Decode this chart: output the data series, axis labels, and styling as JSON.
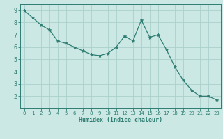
{
  "x": [
    0,
    1,
    2,
    3,
    4,
    5,
    6,
    7,
    8,
    9,
    10,
    11,
    12,
    13,
    14,
    15,
    16,
    17,
    18,
    19,
    20,
    21,
    22,
    23
  ],
  "y": [
    9.0,
    8.4,
    7.8,
    7.4,
    6.5,
    6.3,
    6.0,
    5.7,
    5.4,
    5.3,
    5.5,
    6.0,
    6.9,
    6.5,
    8.2,
    6.8,
    7.0,
    5.8,
    4.4,
    3.3,
    2.5,
    2.0,
    2.0,
    1.7
  ],
  "line_color": "#2e7d72",
  "marker": "*",
  "marker_size": 3.5,
  "bg_color": "#cce8e4",
  "grid_color": "#aacfcc",
  "xlabel": "Humidex (Indice chaleur)",
  "xlim": [
    -0.5,
    23.5
  ],
  "ylim": [
    1.0,
    9.5
  ],
  "yticks": [
    2,
    3,
    4,
    5,
    6,
    7,
    8,
    9
  ],
  "xticks": [
    0,
    1,
    2,
    3,
    4,
    5,
    6,
    7,
    8,
    9,
    10,
    11,
    12,
    13,
    14,
    15,
    16,
    17,
    18,
    19,
    20,
    21,
    22,
    23
  ],
  "tick_color": "#2e7d72",
  "label_color": "#2e7d72",
  "spine_color": "#2e7d72",
  "xlabel_fontsize": 6.0,
  "tick_fontsize_x": 5.2,
  "tick_fontsize_y": 6.0
}
